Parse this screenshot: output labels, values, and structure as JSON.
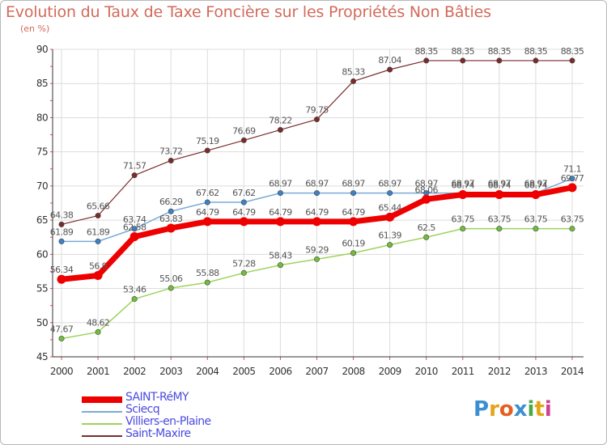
{
  "title": "Evolution du Taux de Taxe Foncière sur les Propriétés Non Bâties",
  "subtitle": "(en %)",
  "logo": {
    "text": "Proxiti",
    "letter_colors": [
      "#3a8fd0",
      "#e3a417",
      "#e45f22",
      "#3a8fd0",
      "#4aa84a",
      "#e3a417",
      "#d13f8f"
    ]
  },
  "chart_data": {
    "type": "line",
    "title": "Evolution du Taux de Taxe Foncière sur les Propriétés Non Bâties",
    "ylabel": "(en %)",
    "xlabel": "",
    "categories": [
      "2000",
      "2001",
      "2002",
      "2003",
      "2004",
      "2005",
      "2006",
      "2007",
      "2008",
      "2009",
      "2010",
      "2011",
      "2012",
      "2013",
      "2014"
    ],
    "ylim": [
      45,
      90
    ],
    "yticks": [
      45,
      50,
      55,
      60,
      65,
      70,
      75,
      80,
      85,
      90
    ],
    "grid": true,
    "legend": "bottom-left",
    "series": [
      {
        "name": "Saint-Maxire",
        "color": "#7b2b2b",
        "marker": "#7b2b2b",
        "width": 1.2,
        "values": [
          64.38,
          65.66,
          71.57,
          73.72,
          75.19,
          76.69,
          78.22,
          79.75,
          85.33,
          87.04,
          88.35,
          88.35,
          88.35,
          88.35,
          88.35
        ],
        "labels": [
          "64.38",
          "65.66",
          "71.57",
          "73.72",
          "75.19",
          "76.69",
          "78.22",
          "79.75",
          "85.33",
          "87.04",
          "88.35",
          "88.35",
          "88.35",
          "88.35",
          "88.35"
        ]
      },
      {
        "name": "Villiers-en-Plaine",
        "color": "#9ed35c",
        "marker": "#6fbf3a",
        "width": 1.5,
        "values": [
          47.67,
          48.62,
          53.46,
          55.06,
          55.88,
          57.28,
          58.43,
          59.29,
          60.19,
          61.39,
          62.5,
          63.75,
          63.75,
          63.75,
          63.75
        ],
        "labels": [
          "47.67",
          "48.62",
          "53.46",
          "55.06",
          "55.88",
          "57.28",
          "58.43",
          "59.29",
          "60.19",
          "61.39",
          "62.5",
          "63.75",
          "63.75",
          "63.75",
          "63.75"
        ]
      },
      {
        "name": "Sciecq",
        "color": "#7aabd8",
        "marker": "#3b82c9",
        "width": 1.5,
        "values": [
          61.89,
          61.89,
          63.74,
          66.29,
          67.62,
          67.62,
          68.97,
          68.97,
          68.97,
          68.97,
          68.97,
          68.97,
          68.97,
          68.97,
          71.1
        ],
        "labels": [
          "61.89",
          "61.89",
          "63.74",
          "66.29",
          "67.62",
          "67.62",
          "68.97",
          "68.97",
          "68.97",
          "68.97",
          "68.97",
          "68.97",
          "68.97",
          "68.97",
          "71.1"
        ]
      },
      {
        "name": "SAINT-RéMY",
        "color": "#ee0000",
        "marker": "#ee0000",
        "width": 7,
        "values": [
          56.34,
          56.9,
          62.58,
          63.83,
          64.79,
          64.79,
          64.79,
          64.79,
          64.79,
          65.44,
          68.06,
          68.74,
          68.74,
          68.74,
          69.77
        ],
        "labels": [
          "56.34",
          "56.9",
          "62.58",
          "63.83",
          "64.79",
          "64.79",
          "64.79",
          "64.79",
          "64.79",
          "65.44",
          "68.06",
          "68.74",
          "68.74",
          "68.74",
          "69.77"
        ]
      }
    ]
  },
  "legend_items": [
    {
      "label": "SAINT-RéMY",
      "color": "#ee0000",
      "height": 8
    },
    {
      "label": "Sciecq",
      "color": "#7aabd8",
      "height": 2
    },
    {
      "label": "Villiers-en-Plaine",
      "color": "#9ed35c",
      "height": 2
    },
    {
      "label": "Saint-Maxire",
      "color": "#7b2b2b",
      "height": 2
    }
  ]
}
